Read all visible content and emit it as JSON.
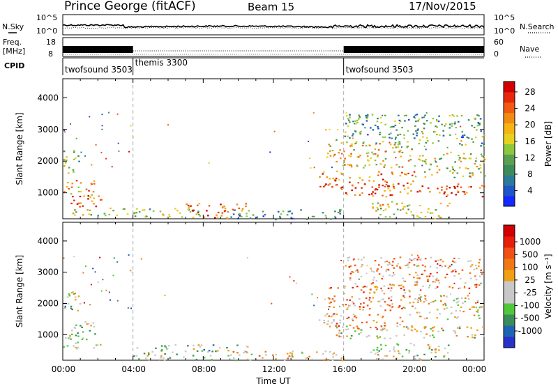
{
  "header": {
    "station": "Prince George (fitACF)",
    "beam": "Beam 15",
    "date": "17/Nov/2015"
  },
  "top_strip": {
    "left_label": "N.Sky",
    "left_ticks": [
      "10^5",
      "10^0"
    ],
    "right_label": "N.Search",
    "right_ticks": [
      "10^5",
      "10^0"
    ]
  },
  "freq_strip": {
    "left_label_1": "Freq.",
    "left_label_2": "[MHz]",
    "left_ticks": [
      "18",
      "8"
    ],
    "right_label": "Nave",
    "right_ticks": [
      "60",
      "0"
    ]
  },
  "cpid": {
    "label": "CPID",
    "segments": [
      {
        "name": "twofsound 3503",
        "start_h": 0,
        "end_h": 4
      },
      {
        "name": "themis 3300",
        "start_h": 4,
        "end_h": 16
      },
      {
        "name": "twofsound 3503",
        "start_h": 16,
        "end_h": 24
      }
    ]
  },
  "chart_data": [
    {
      "type": "heatmap",
      "panel": "power",
      "ylabel": "Slant Range [km]",
      "xlabel": "Time UT",
      "xlim_h": [
        0,
        24
      ],
      "ylim": [
        180,
        4600
      ],
      "y_ticks": [
        1000,
        2000,
        3000,
        4000
      ],
      "x_ticks": [
        "00:00",
        "04:00",
        "08:00",
        "12:00",
        "16:00",
        "20:00",
        "00:00"
      ],
      "colorbar": {
        "label": "Power [dB]",
        "ticks": [
          "4",
          "8",
          "12",
          "16",
          "20",
          "24",
          "28"
        ],
        "colors": [
          "#1428ff",
          "#1e55c8",
          "#2a7a9a",
          "#3c8c5a",
          "#5aa050",
          "#8cc83c",
          "#e6d21e",
          "#f5b414",
          "#f08c14",
          "#f05a14",
          "#e8280a",
          "#d20000"
        ]
      },
      "regions": [
        {
          "t0": 0.0,
          "t1": 2.2,
          "r0": 550,
          "r1": 950,
          "level": 0.85
        },
        {
          "t0": 0.0,
          "t1": 1.8,
          "r0": 950,
          "r1": 1450,
          "level": 0.7
        },
        {
          "t0": 0.0,
          "t1": 1.0,
          "r0": 1600,
          "r1": 2400,
          "level": 0.45
        },
        {
          "t0": 0.5,
          "t1": 2.5,
          "r0": 300,
          "r1": 550,
          "level": 0.55
        },
        {
          "t0": 2.0,
          "t1": 4.2,
          "r0": 300,
          "r1": 550,
          "level": 0.5
        },
        {
          "t0": 4.0,
          "t1": 8.0,
          "r0": 250,
          "r1": 550,
          "level": 0.45
        },
        {
          "t0": 7.0,
          "t1": 10.5,
          "r0": 200,
          "r1": 700,
          "level": 0.8
        },
        {
          "t0": 9.5,
          "t1": 16.0,
          "r0": 180,
          "r1": 500,
          "level": 0.25
        },
        {
          "t0": 14.5,
          "t1": 20.0,
          "r0": 1200,
          "r1": 1700,
          "level": 0.8
        },
        {
          "t0": 15.5,
          "t1": 24.0,
          "r0": 900,
          "r1": 1300,
          "level": 0.85
        },
        {
          "t0": 15.0,
          "t1": 20.0,
          "r0": 1800,
          "r1": 2600,
          "level": 0.6
        },
        {
          "t0": 17.5,
          "t1": 22.0,
          "r0": 200,
          "r1": 750,
          "level": 0.55
        },
        {
          "t0": 20.0,
          "t1": 24.0,
          "r0": 1500,
          "r1": 2300,
          "level": 0.5
        },
        {
          "t0": 16.0,
          "t1": 24.0,
          "r0": 2500,
          "r1": 3500,
          "level": 0.3
        }
      ]
    },
    {
      "type": "heatmap",
      "panel": "velocity",
      "ylabel": "Slant Range [km]",
      "xlabel": "Time UT",
      "xlim_h": [
        0,
        24
      ],
      "ylim": [
        180,
        4600
      ],
      "y_ticks": [
        1000,
        2000,
        3000,
        4000
      ],
      "x_ticks": [
        "00:00",
        "04:00",
        "08:00",
        "12:00",
        "16:00",
        "20:00",
        "00:00"
      ],
      "colorbar": {
        "label": "Velocity [m s⁻¹]",
        "ticks": [
          "1000",
          "500",
          "100",
          "25",
          "-25",
          "-100",
          "-500",
          "-1000"
        ],
        "colors": [
          "#2832c8",
          "#1e64b4",
          "#3c8c5a",
          "#50c83c",
          "#c8c8c8",
          "#c8c8c8",
          "#f0a014",
          "#f07814",
          "#f05014",
          "#e61e0a",
          "#d20000"
        ]
      },
      "regions": [
        {
          "t0": 0.0,
          "t1": 2.2,
          "r0": 550,
          "r1": 950,
          "level": 0.45
        },
        {
          "t0": 0.0,
          "t1": 1.8,
          "r0": 950,
          "r1": 1450,
          "level": 0.4
        },
        {
          "t0": 0.0,
          "t1": 1.0,
          "r0": 1600,
          "r1": 2400,
          "level": 0.45
        },
        {
          "t0": 4.0,
          "t1": 10.5,
          "r0": 200,
          "r1": 700,
          "level": 0.35
        },
        {
          "t0": 9.5,
          "t1": 16.0,
          "r0": 180,
          "r1": 500,
          "level": 0.55
        },
        {
          "t0": 14.5,
          "t1": 20.0,
          "r0": 1200,
          "r1": 1700,
          "level": 0.65
        },
        {
          "t0": 15.5,
          "t1": 24.0,
          "r0": 900,
          "r1": 1300,
          "level": 0.45
        },
        {
          "t0": 15.0,
          "t1": 20.0,
          "r0": 1800,
          "r1": 2600,
          "level": 0.7
        },
        {
          "t0": 17.5,
          "t1": 22.0,
          "r0": 200,
          "r1": 750,
          "level": 0.45
        },
        {
          "t0": 20.0,
          "t1": 24.0,
          "r0": 1500,
          "r1": 2300,
          "level": 0.5
        },
        {
          "t0": 16.0,
          "t1": 24.0,
          "r0": 2500,
          "r1": 3500,
          "level": 0.65
        }
      ]
    }
  ]
}
